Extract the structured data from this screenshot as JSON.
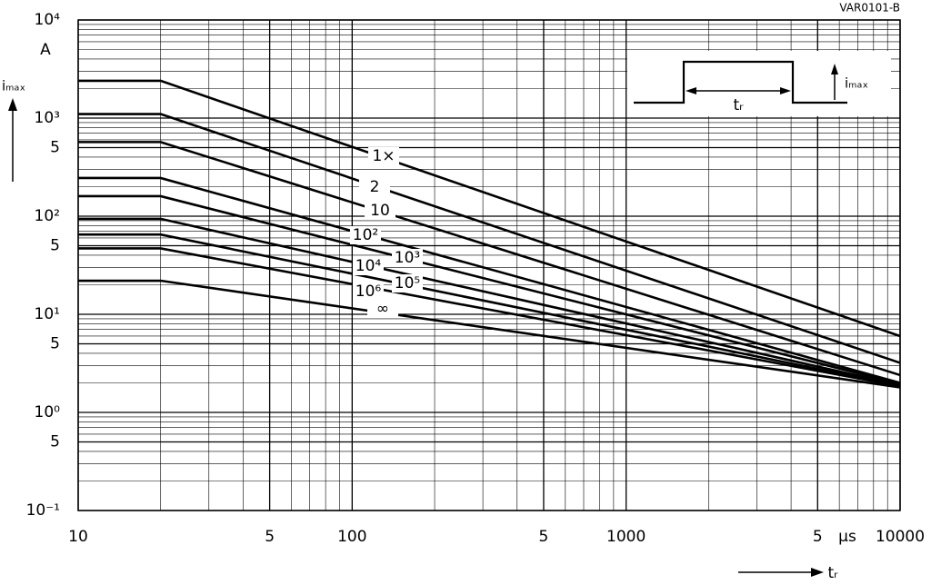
{
  "chart_data": {
    "type": "line",
    "figure_code": "VAR0101-B",
    "y_label": "iₘₐₓ",
    "y_unit": "A",
    "x_label": "tᵣ",
    "x_unit": "µs",
    "log_x": true,
    "log_y": true,
    "grid": true,
    "minor_grid": true,
    "x": [
      10,
      20,
      10000
    ],
    "xlim": [
      10,
      10000
    ],
    "xticks": [
      10,
      {
        "value": 50,
        "label": "5"
      },
      100,
      {
        "value": 500,
        "label": "5"
      },
      1000,
      {
        "value": 5000,
        "label": "5"
      },
      10000
    ],
    "ylim": [
      0.1,
      10000
    ],
    "yticks": [
      {
        "value": 10000,
        "label": "10⁴"
      },
      {
        "value": 1000,
        "label": "10³"
      },
      {
        "value": 500,
        "label": "5"
      },
      {
        "value": 100,
        "label": "10²"
      },
      {
        "value": 50,
        "label": "5"
      },
      {
        "value": 10,
        "label": "10¹"
      },
      {
        "value": 5,
        "label": "5"
      },
      {
        "value": 1,
        "label": "10⁰"
      },
      {
        "value": 0.5,
        "label": "5"
      },
      {
        "value": 0.1,
        "label": "10⁻¹"
      }
    ],
    "series": [
      {
        "name": "1×",
        "color": "#000000",
        "values": [
          2400,
          2400,
          6
        ]
      },
      {
        "name": "2",
        "color": "#000000",
        "values": [
          1100,
          1100,
          3.2
        ]
      },
      {
        "name": "10",
        "color": "#000000",
        "values": [
          570,
          570,
          2.4
        ]
      },
      {
        "name": "10²",
        "color": "#000000",
        "values": [
          245,
          245,
          2
        ]
      },
      {
        "name": "10³",
        "color": "#000000",
        "values": [
          160,
          160,
          1.95
        ]
      },
      {
        "name": "10⁴",
        "color": "#000000",
        "values": [
          94,
          94,
          1.9
        ]
      },
      {
        "name": "10⁵",
        "color": "#000000",
        "values": [
          65,
          65,
          1.87
        ]
      },
      {
        "name": "10⁶",
        "color": "#000000",
        "values": [
          47,
          47,
          1.85
        ]
      },
      {
        "name": "∞",
        "color": "#000000",
        "values": [
          22,
          22,
          1.8
        ]
      }
    ],
    "inset": {
      "pulse_width_label": "tᵣ",
      "amplitude_label": "iₘₐₓ"
    }
  }
}
